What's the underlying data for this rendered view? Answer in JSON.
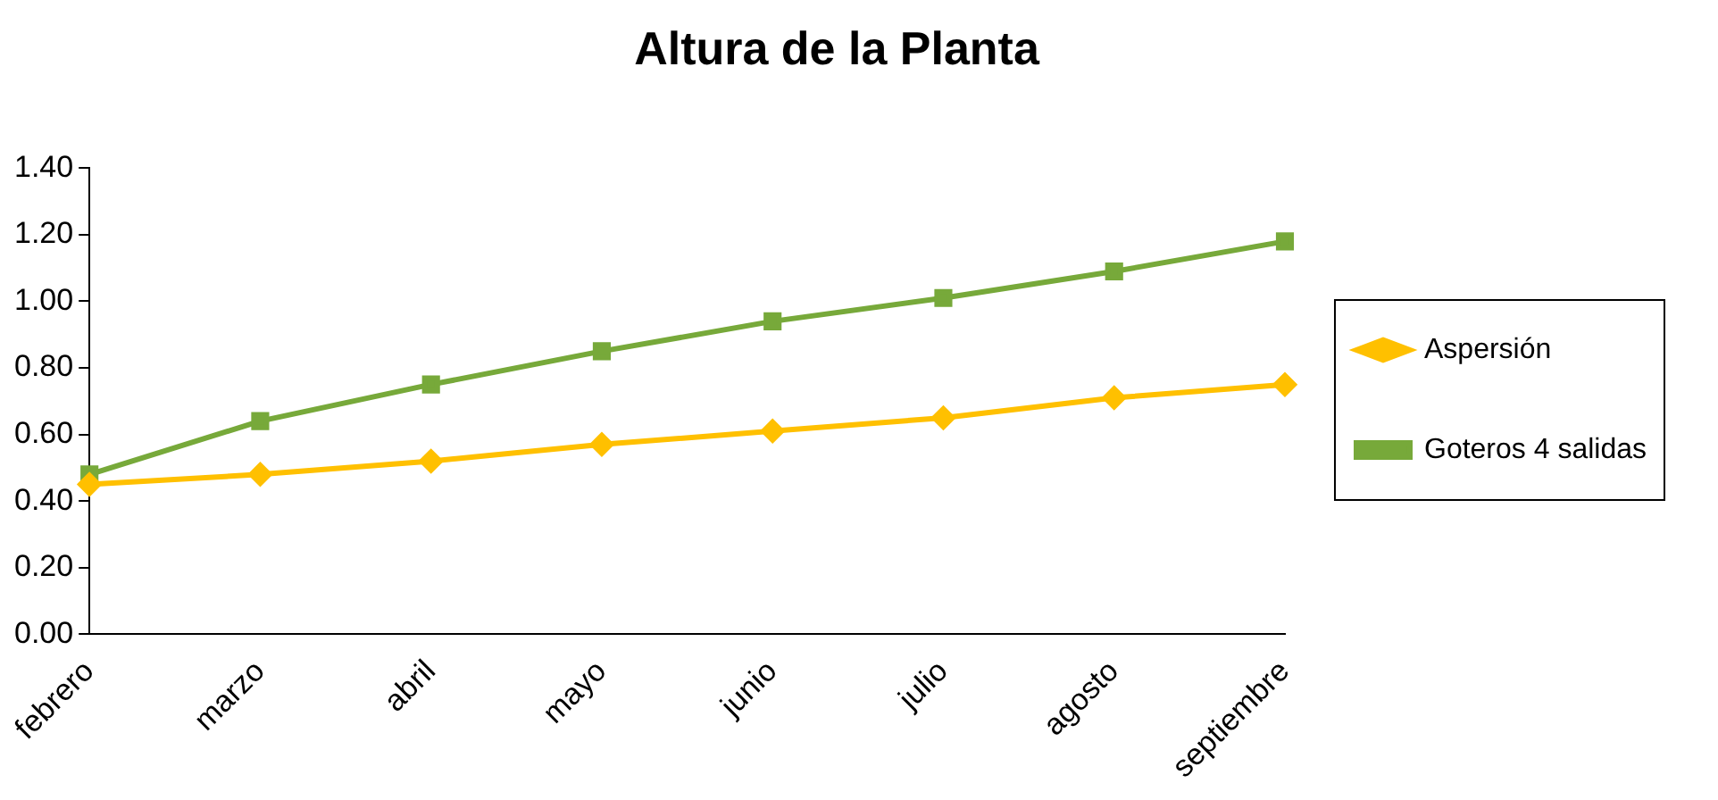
{
  "chart_data": {
    "type": "line",
    "title": "Altura de la Planta",
    "categories": [
      "febrero",
      "marzo",
      "abril",
      "mayo",
      "junio",
      "julio",
      "agosto",
      "septiembre"
    ],
    "series": [
      {
        "name": "Aspersión",
        "color": "#ffc000",
        "marker": "diamond",
        "values": [
          0.45,
          0.48,
          0.52,
          0.57,
          0.61,
          0.65,
          0.71,
          0.75
        ]
      },
      {
        "name": "Goteros 4 salidas",
        "color": "#77a93a",
        "marker": "square",
        "values": [
          0.48,
          0.64,
          0.75,
          0.85,
          0.94,
          1.01,
          1.09,
          1.18
        ]
      }
    ],
    "ylim": [
      0,
      1.4
    ],
    "yticks": [
      {
        "value": 0,
        "label": "0.00"
      },
      {
        "value": 0.2,
        "label": "0.20"
      },
      {
        "value": 0.4,
        "label": "0.40"
      },
      {
        "value": 0.6,
        "label": "0.60"
      },
      {
        "value": 0.8,
        "label": "0.80"
      },
      {
        "value": 1.0,
        "label": "1.00"
      },
      {
        "value": 1.2,
        "label": "1.20"
      },
      {
        "value": 1.4,
        "label": "1.40"
      }
    ],
    "grid": false,
    "legend": "right"
  }
}
